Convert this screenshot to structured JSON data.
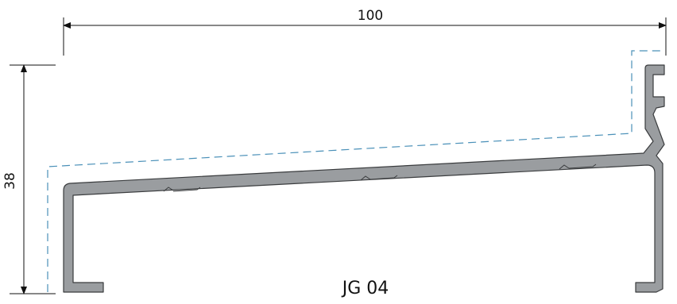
{
  "dimensions": {
    "width": "100",
    "height": "38"
  },
  "profile": {
    "name": "JG 04"
  },
  "colors": {
    "profile_fill": "#9a9da0",
    "profile_stroke": "#3a3c3e",
    "dashed_outline": "#4a90b8",
    "dimension_lines": "#111111"
  }
}
